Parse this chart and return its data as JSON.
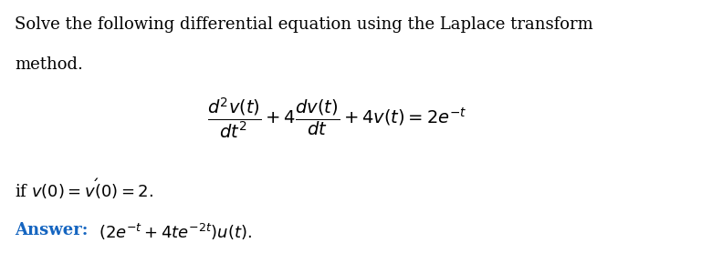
{
  "fig_width": 7.8,
  "fig_height": 2.78,
  "dpi": 100,
  "bg_color": "#ffffff",
  "text_color": "#000000",
  "answer_color": "#1565C0",
  "line1_text": "Solve the following differential equation using the Laplace transform",
  "line2_text": "method.",
  "equation_latex": "\\frac{d^2v(t)}{dt^2} + 4\\frac{dv(t)}{dt} + 4v(t) = 2e^{-t}",
  "condition_latex": "if $v(0) = v'(0) = 2.$",
  "answer_label": "Answer:",
  "answer_latex": "$(2e^{-t} + 4te^{-2t})u(t).$",
  "font_size_text": 13,
  "font_size_eq": 14,
  "font_size_answer": 13
}
